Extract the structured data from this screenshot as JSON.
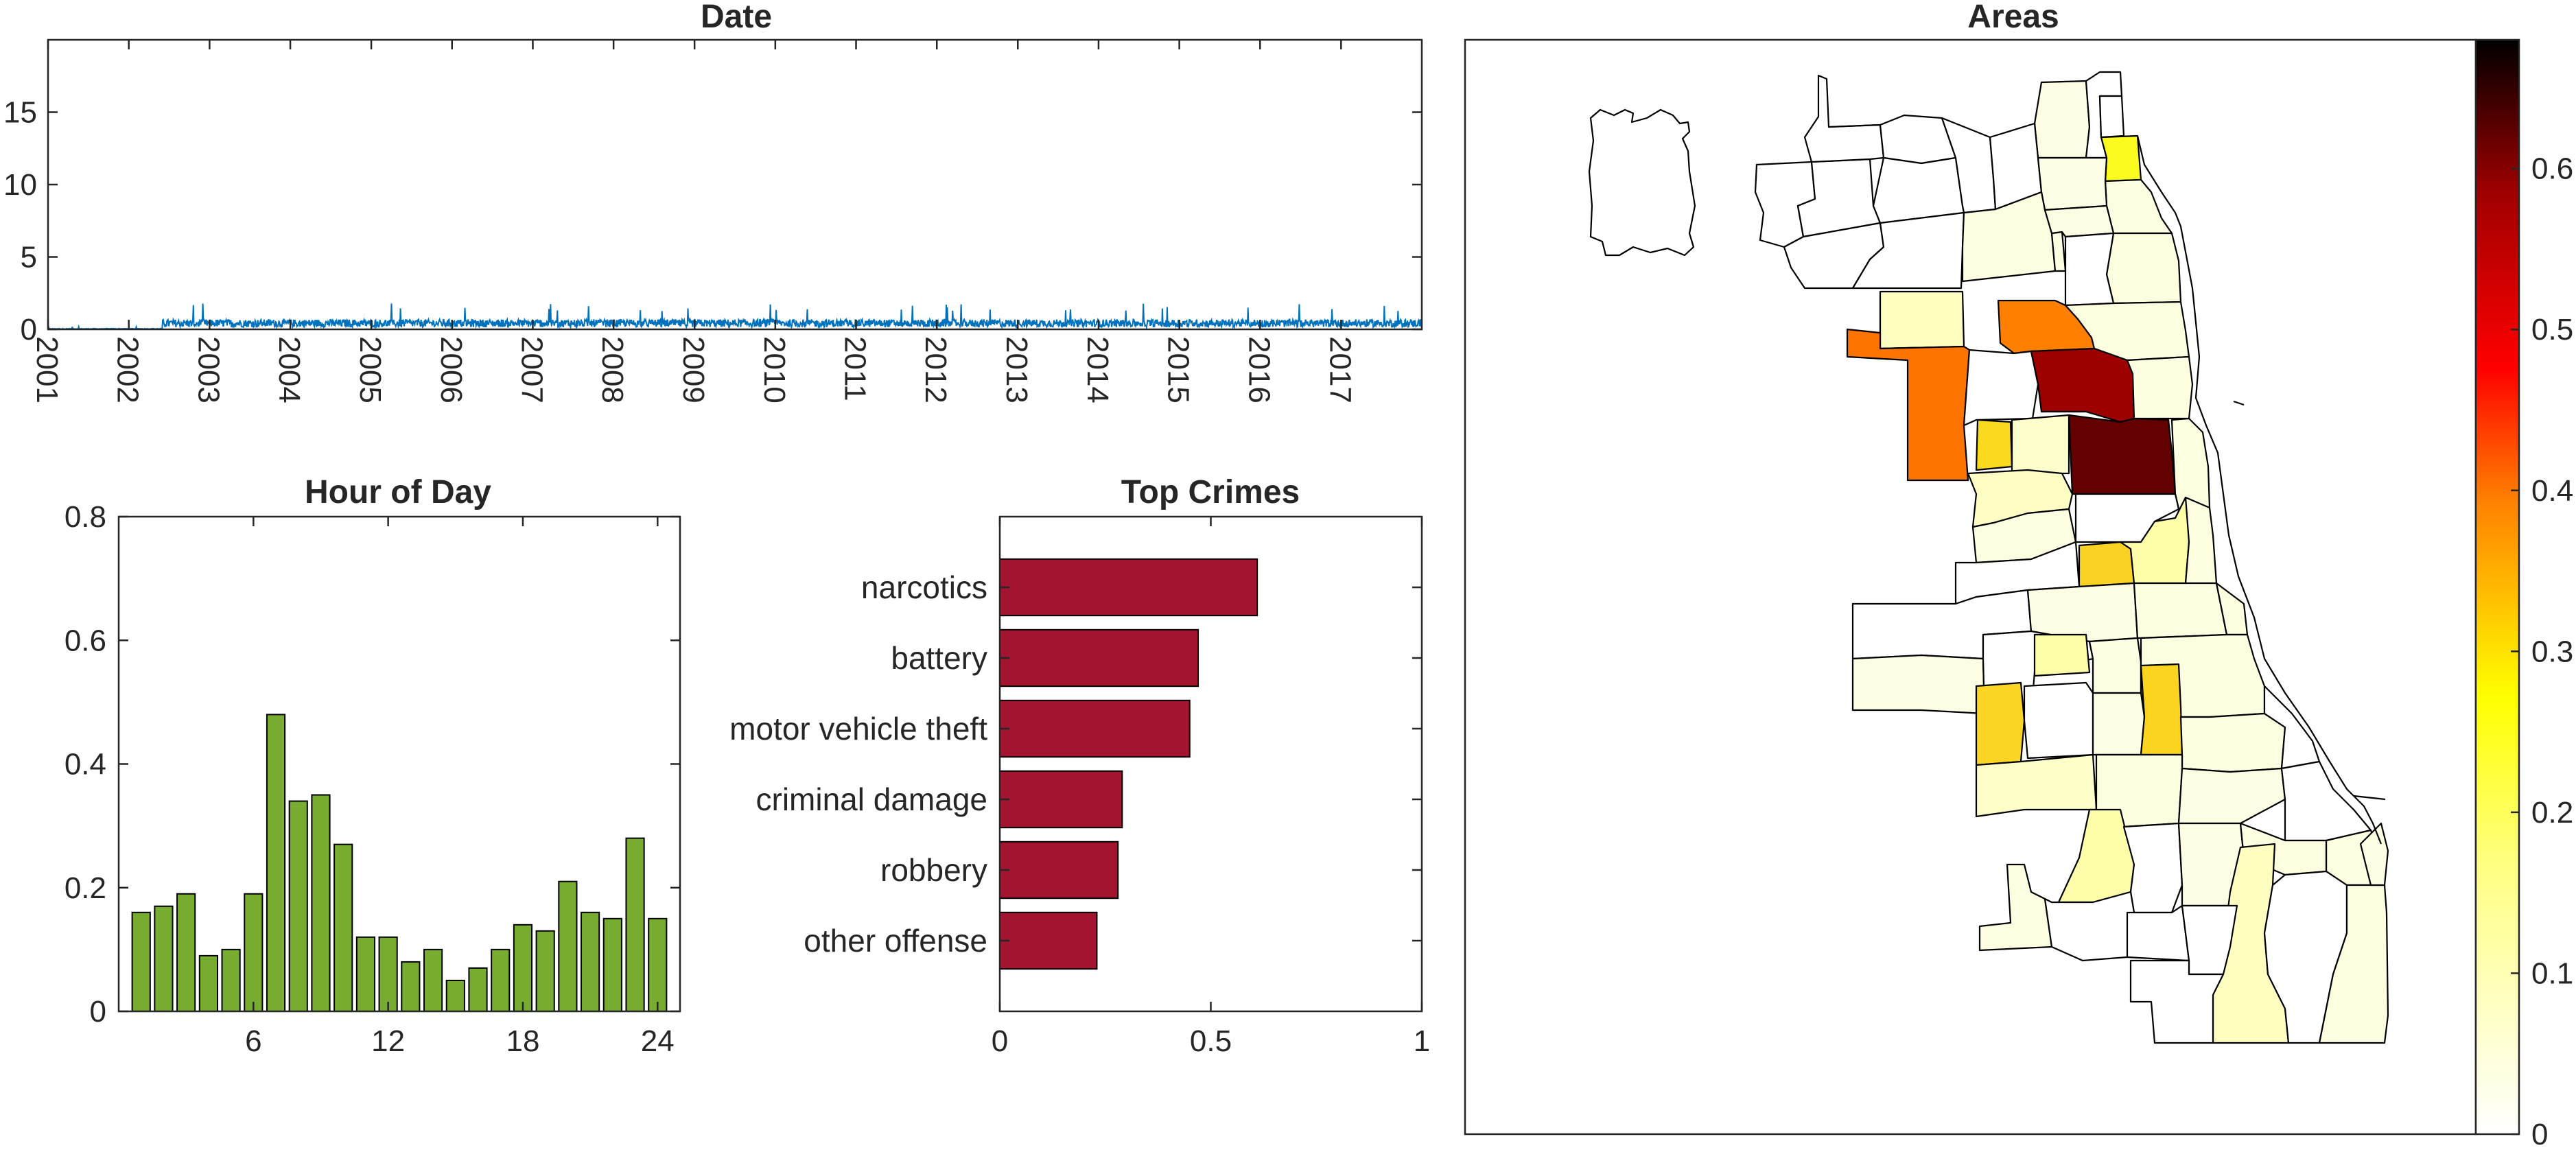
{
  "chart_data": [
    {
      "type": "line",
      "title": "Date",
      "x_ticks": [
        "2001",
        "2002",
        "2003",
        "2004",
        "2005",
        "2006",
        "2007",
        "2008",
        "2009",
        "2010",
        "2011",
        "2012",
        "2013",
        "2014",
        "2015",
        "2016",
        "2017"
      ],
      "xlim": [
        "2001-01-01",
        "2018-01-01"
      ],
      "ylim": [
        0,
        20
      ],
      "y_ticks": [
        "0",
        "5",
        "10",
        "15"
      ],
      "color": "#0072BD",
      "series_description": [
        {
          "start": "2001-01-01",
          "end": "2002-06-01",
          "level": 0.05,
          "peak": 0.2
        },
        {
          "start": "2002-06-01",
          "end": "2018-01-01",
          "level": 0.6,
          "peak": 1.8
        }
      ]
    },
    {
      "type": "bar",
      "title": "Hour of Day",
      "categories": [
        1,
        2,
        3,
        4,
        5,
        6,
        7,
        8,
        9,
        10,
        11,
        12,
        13,
        14,
        15,
        16,
        17,
        18,
        19,
        20,
        21,
        22,
        23,
        24
      ],
      "values": [
        0.16,
        0.17,
        0.19,
        0.09,
        0.1,
        0.19,
        0.48,
        0.34,
        0.35,
        0.27,
        0.12,
        0.12,
        0.08,
        0.1,
        0.05,
        0.07,
        0.1,
        0.14,
        0.13,
        0.21,
        0.16,
        0.15,
        0.28,
        0.15
      ],
      "x_ticks": [
        "6",
        "12",
        "18",
        "24"
      ],
      "y_ticks": [
        "0",
        "0.2",
        "0.4",
        "0.6",
        "0.8"
      ],
      "xlim": [
        0,
        25
      ],
      "ylim": [
        0,
        0.8
      ],
      "color": "#77AC30"
    },
    {
      "type": "bar",
      "orientation": "horizontal",
      "title": "Top Crimes",
      "categories": [
        "narcotics",
        "battery",
        "motor vehicle theft",
        "criminal damage",
        "robbery",
        "other offense"
      ],
      "values": [
        0.61,
        0.47,
        0.45,
        0.29,
        0.28,
        0.23
      ],
      "x_ticks": [
        "0",
        "0.5",
        "1"
      ],
      "xlim": [
        0,
        1
      ],
      "color": "#A2142F"
    },
    {
      "type": "heatmap",
      "title": "Areas",
      "colormap": "hot (reversed)",
      "clim": [
        0,
        0.68
      ],
      "colorbar_ticks": [
        "0",
        "0.1",
        "0.2",
        "0.3",
        "0.4",
        "0.5",
        "0.6"
      ],
      "highlighted_values": [
        0.66,
        0.55,
        0.3,
        0.28,
        0.17,
        0.14,
        0.1,
        0.08,
        0.06,
        0.04,
        0.03,
        0.02,
        0.01,
        0
      ]
    }
  ]
}
